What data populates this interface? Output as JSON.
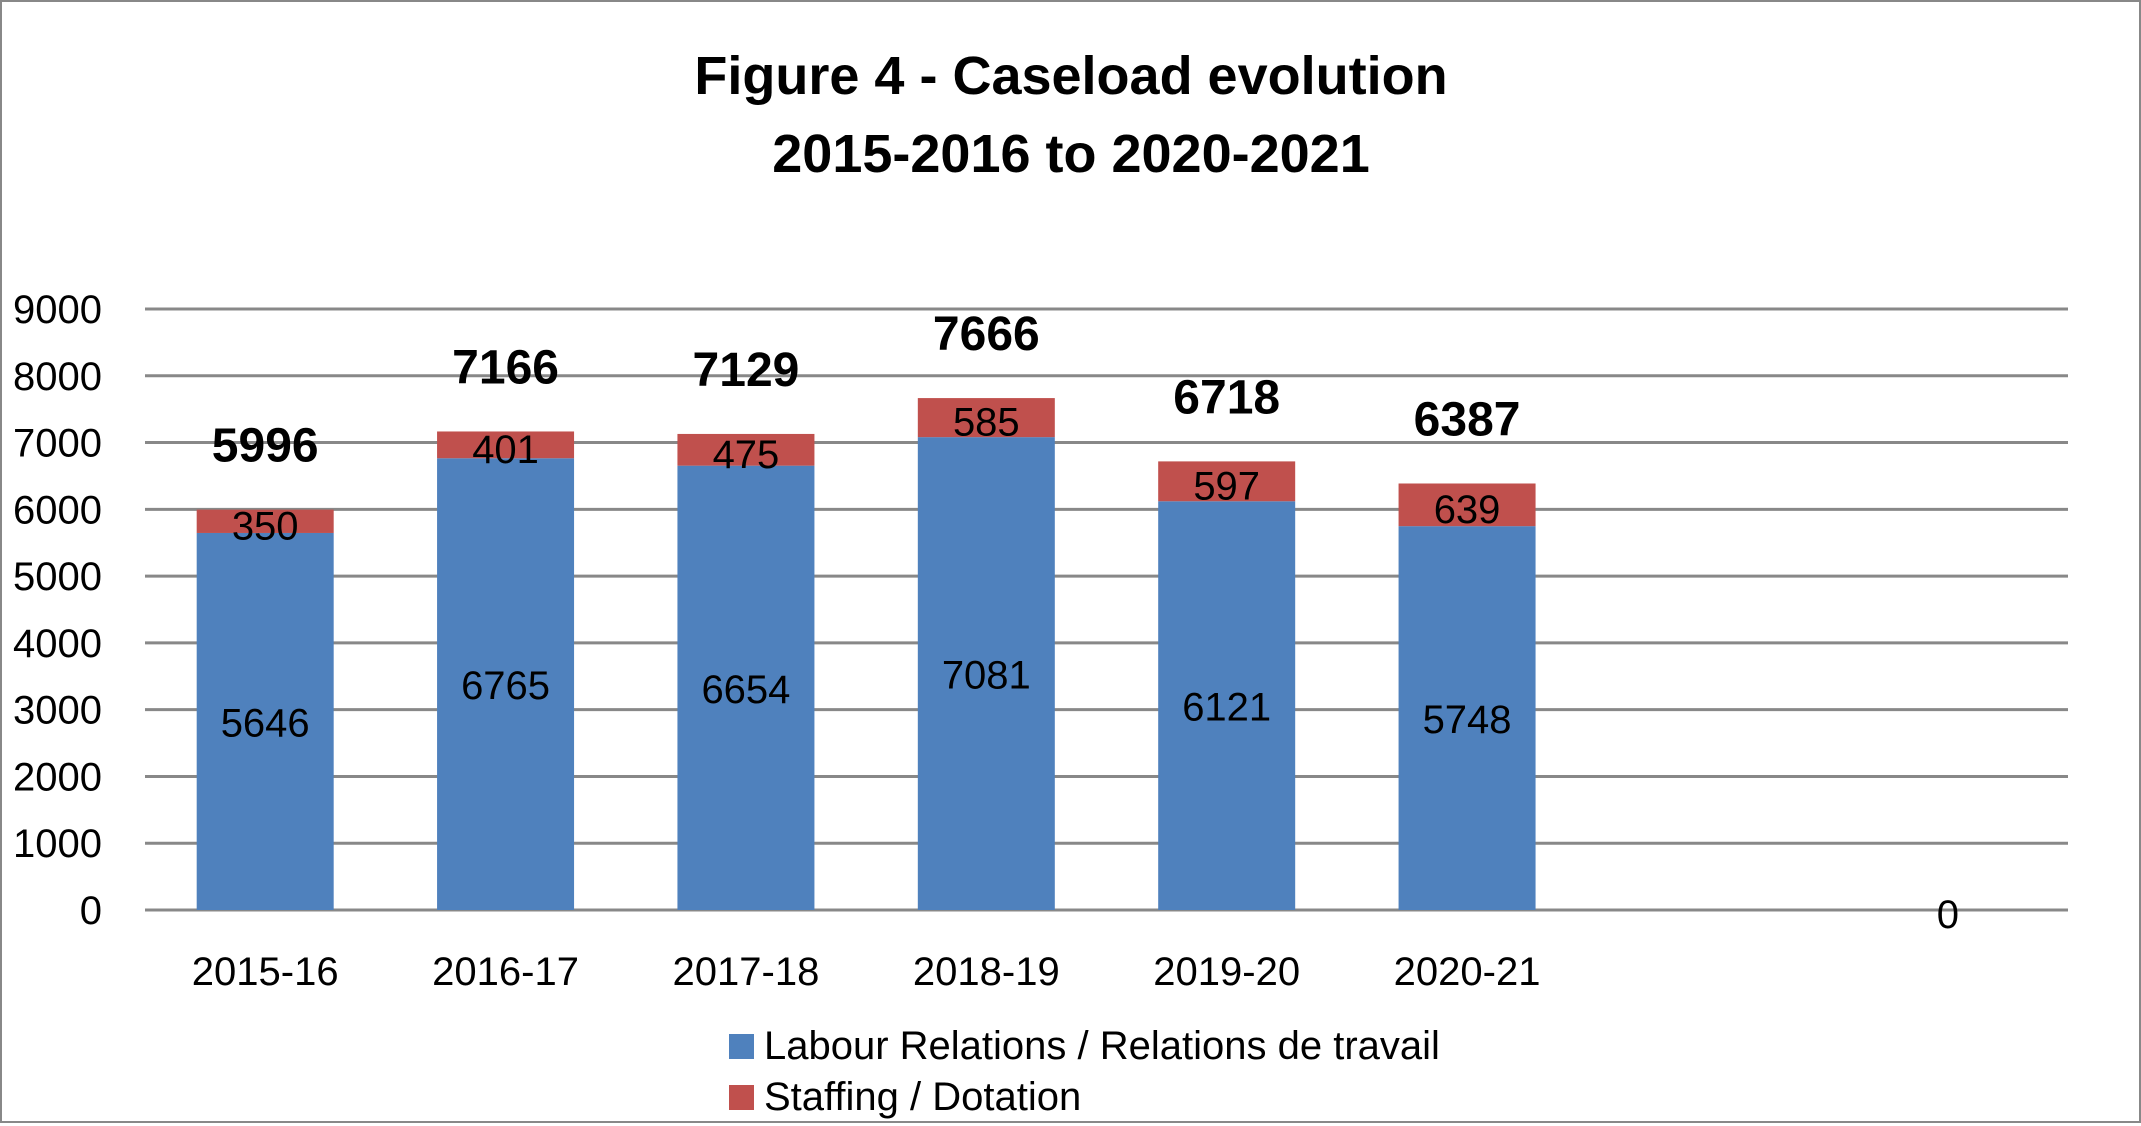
{
  "chart_data": {
    "type": "bar",
    "stacked": true,
    "title": [
      "Figure 4 - Caseload evolution",
      "2015-2016 to 2020-2021"
    ],
    "categories": [
      "2015-16",
      "2016-17",
      "2017-18",
      "2018-19",
      "2019-20",
      "2020-21",
      "",
      ""
    ],
    "series": [
      {
        "name": "Labour Relations / Relations de travail",
        "color": "#4F81BD",
        "values": [
          5646,
          6765,
          6654,
          7081,
          6121,
          5748,
          null,
          null
        ]
      },
      {
        "name": "Staffing / Dotation",
        "color": "#C0504D",
        "values": [
          350,
          401,
          475,
          585,
          597,
          639,
          null,
          null
        ]
      }
    ],
    "totals": [
      "5996",
      "7166",
      "7129",
      "7666",
      "6718",
      "6387",
      null,
      "0"
    ],
    "ylim": [
      0,
      9000
    ],
    "yticks": [
      0,
      1000,
      2000,
      3000,
      4000,
      5000,
      6000,
      7000,
      8000,
      9000
    ],
    "grid": true,
    "legend_position": "bottom"
  }
}
